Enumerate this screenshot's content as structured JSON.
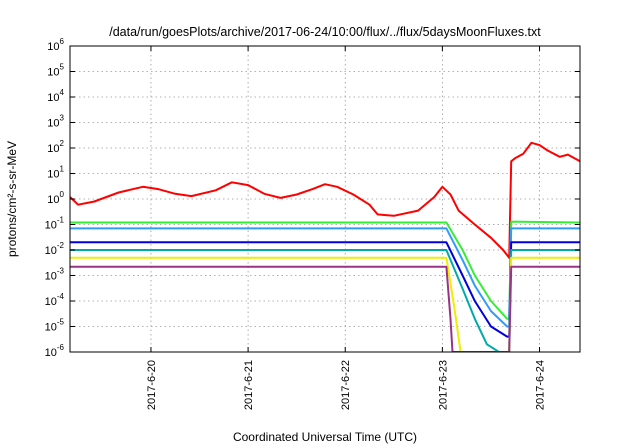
{
  "chart_data": {
    "type": "line",
    "title": "/data/run/goesPlots/archive/2017-06-24/10:00/flux/../flux/5daysMoonFluxes.txt",
    "xlabel": "Coordinated Universal Time (UTC)",
    "ylabel": "protons/cm²-s-sr-MeV",
    "y_scale": "log",
    "ylim": [
      1e-06,
      1000000.0
    ],
    "y_ticks": [
      {
        "base": "10",
        "exp": "-6",
        "value": 1e-06
      },
      {
        "base": "10",
        "exp": "-5",
        "value": 1e-05
      },
      {
        "base": "10",
        "exp": "-4",
        "value": 0.0001
      },
      {
        "base": "10",
        "exp": "-3",
        "value": 0.001
      },
      {
        "base": "10",
        "exp": "-2",
        "value": 0.01
      },
      {
        "base": "10",
        "exp": "-1",
        "value": 0.1
      },
      {
        "base": "10",
        "exp": "0",
        "value": 1
      },
      {
        "base": "10",
        "exp": "1",
        "value": 10
      },
      {
        "base": "10",
        "exp": "2",
        "value": 100
      },
      {
        "base": "10",
        "exp": "3",
        "value": 1000
      },
      {
        "base": "10",
        "exp": "4",
        "value": 10000
      },
      {
        "base": "10",
        "exp": "5",
        "value": 100000
      },
      {
        "base": "10",
        "exp": "6",
        "value": 1000000
      }
    ],
    "xlim": [
      "2017-06-19 04:00",
      "2017-06-24 10:00"
    ],
    "x_ticks": [
      {
        "label": "2017-6-20",
        "value": "2017-06-20 00:00"
      },
      {
        "label": "2017-6-21",
        "value": "2017-06-21 00:00"
      },
      {
        "label": "2017-6-22",
        "value": "2017-06-22 00:00"
      },
      {
        "label": "2017-6-23",
        "value": "2017-06-23 00:00"
      },
      {
        "label": "2017-6-24",
        "value": "2017-06-24 00:00"
      }
    ],
    "grid": true,
    "legend": "none",
    "series": [
      {
        "color": "#ff0000",
        "points": [
          [
            "2017-06-19 04:00",
            1.2
          ],
          [
            "2017-06-19 06:00",
            0.6
          ],
          [
            "2017-06-19 10:00",
            0.8
          ],
          [
            "2017-06-19 16:00",
            1.8
          ],
          [
            "2017-06-19 22:00",
            3.0
          ],
          [
            "2017-06-20 02:00",
            2.4
          ],
          [
            "2017-06-20 06:00",
            1.6
          ],
          [
            "2017-06-20 10:00",
            1.3
          ],
          [
            "2017-06-20 16:00",
            2.2
          ],
          [
            "2017-06-20 20:00",
            4.5
          ],
          [
            "2017-06-21 00:00",
            3.5
          ],
          [
            "2017-06-21 04:00",
            1.6
          ],
          [
            "2017-06-21 08:00",
            1.1
          ],
          [
            "2017-06-21 12:00",
            1.5
          ],
          [
            "2017-06-21 16:00",
            2.5
          ],
          [
            "2017-06-21 19:00",
            3.8
          ],
          [
            "2017-06-21 22:00",
            3.0
          ],
          [
            "2017-06-22 02:00",
            1.5
          ],
          [
            "2017-06-22 06:00",
            0.6
          ],
          [
            "2017-06-22 08:00",
            0.25
          ],
          [
            "2017-06-22 12:00",
            0.22
          ],
          [
            "2017-06-22 18:00",
            0.35
          ],
          [
            "2017-06-22 22:00",
            1.2
          ],
          [
            "2017-06-23 00:00",
            3.0
          ],
          [
            "2017-06-23 02:00",
            1.5
          ],
          [
            "2017-06-23 04:00",
            0.35
          ],
          [
            "2017-06-23 08:00",
            0.1
          ],
          [
            "2017-06-23 12:00",
            0.03
          ],
          [
            "2017-06-23 15:00",
            0.01
          ],
          [
            "2017-06-23 16:30",
            0.005
          ],
          [
            "2017-06-23 17:00",
            30
          ],
          [
            "2017-06-23 18:00",
            40
          ],
          [
            "2017-06-23 20:00",
            60
          ],
          [
            "2017-06-23 22:00",
            160
          ],
          [
            "2017-06-24 00:00",
            130
          ],
          [
            "2017-06-24 02:00",
            80
          ],
          [
            "2017-06-24 05:00",
            45
          ],
          [
            "2017-06-24 07:00",
            55
          ],
          [
            "2017-06-24 10:00",
            30
          ]
        ]
      },
      {
        "color": "#33ee33",
        "points": [
          [
            "2017-06-19 04:00",
            0.12
          ],
          [
            "2017-06-23 01:00",
            0.12
          ],
          [
            "2017-06-23 05:00",
            0.01
          ],
          [
            "2017-06-23 08:00",
            0.001
          ],
          [
            "2017-06-23 12:00",
            0.0001
          ],
          [
            "2017-06-23 16:00",
            2e-05
          ],
          [
            "2017-06-23 16:30",
            2e-05
          ],
          [
            "2017-06-23 17:00",
            0.13
          ],
          [
            "2017-06-24 10:00",
            0.12
          ]
        ]
      },
      {
        "color": "#3399ff",
        "points": [
          [
            "2017-06-19 04:00",
            0.07
          ],
          [
            "2017-06-23 01:00",
            0.07
          ],
          [
            "2017-06-23 05:00",
            0.004
          ],
          [
            "2017-06-23 08:00",
            0.0004
          ],
          [
            "2017-06-23 12:00",
            4e-05
          ],
          [
            "2017-06-23 16:00",
            1e-05
          ],
          [
            "2017-06-23 16:30",
            1e-05
          ],
          [
            "2017-06-23 17:00",
            0.07
          ],
          [
            "2017-06-24 10:00",
            0.07
          ]
        ]
      },
      {
        "color": "#0000dd",
        "points": [
          [
            "2017-06-19 04:00",
            0.02
          ],
          [
            "2017-06-23 01:00",
            0.02
          ],
          [
            "2017-06-23 05:00",
            0.001
          ],
          [
            "2017-06-23 08:00",
            0.0001
          ],
          [
            "2017-06-23 12:00",
            1e-05
          ],
          [
            "2017-06-23 16:00",
            4e-06
          ],
          [
            "2017-06-23 16:30",
            4e-06
          ],
          [
            "2017-06-23 17:00",
            0.02
          ],
          [
            "2017-06-24 10:00",
            0.02
          ]
        ]
      },
      {
        "color": "#00aaaa",
        "points": [
          [
            "2017-06-19 04:00",
            0.01
          ],
          [
            "2017-06-23 01:00",
            0.01
          ],
          [
            "2017-06-23 05:00",
            0.0003
          ],
          [
            "2017-06-23 08:00",
            2e-05
          ],
          [
            "2017-06-23 11:00",
            2e-06
          ],
          [
            "2017-06-23 14:00",
            1e-06
          ],
          [
            "2017-06-23 16:30",
            1e-06
          ],
          [
            "2017-06-23 17:00",
            0.01
          ],
          [
            "2017-06-24 10:00",
            0.01
          ]
        ]
      },
      {
        "color": "#eeee00",
        "points": [
          [
            "2017-06-19 04:00",
            0.005
          ],
          [
            "2017-06-23 01:00",
            0.005
          ],
          [
            "2017-06-23 03:00",
            5e-05
          ],
          [
            "2017-06-23 04:30",
            1e-06
          ],
          [
            "2017-06-23 16:30",
            1e-06
          ],
          [
            "2017-06-23 17:00",
            0.005
          ],
          [
            "2017-06-24 10:00",
            0.005
          ]
        ]
      },
      {
        "color": "#993388",
        "points": [
          [
            "2017-06-19 04:00",
            0.0022
          ],
          [
            "2017-06-23 01:00",
            0.0022
          ],
          [
            "2017-06-23 02:00",
            2e-05
          ],
          [
            "2017-06-23 02:30",
            1e-06
          ],
          [
            "2017-06-23 16:30",
            1e-06
          ],
          [
            "2017-06-23 17:00",
            0.0022
          ],
          [
            "2017-06-24 10:00",
            0.0022
          ]
        ]
      }
    ]
  }
}
